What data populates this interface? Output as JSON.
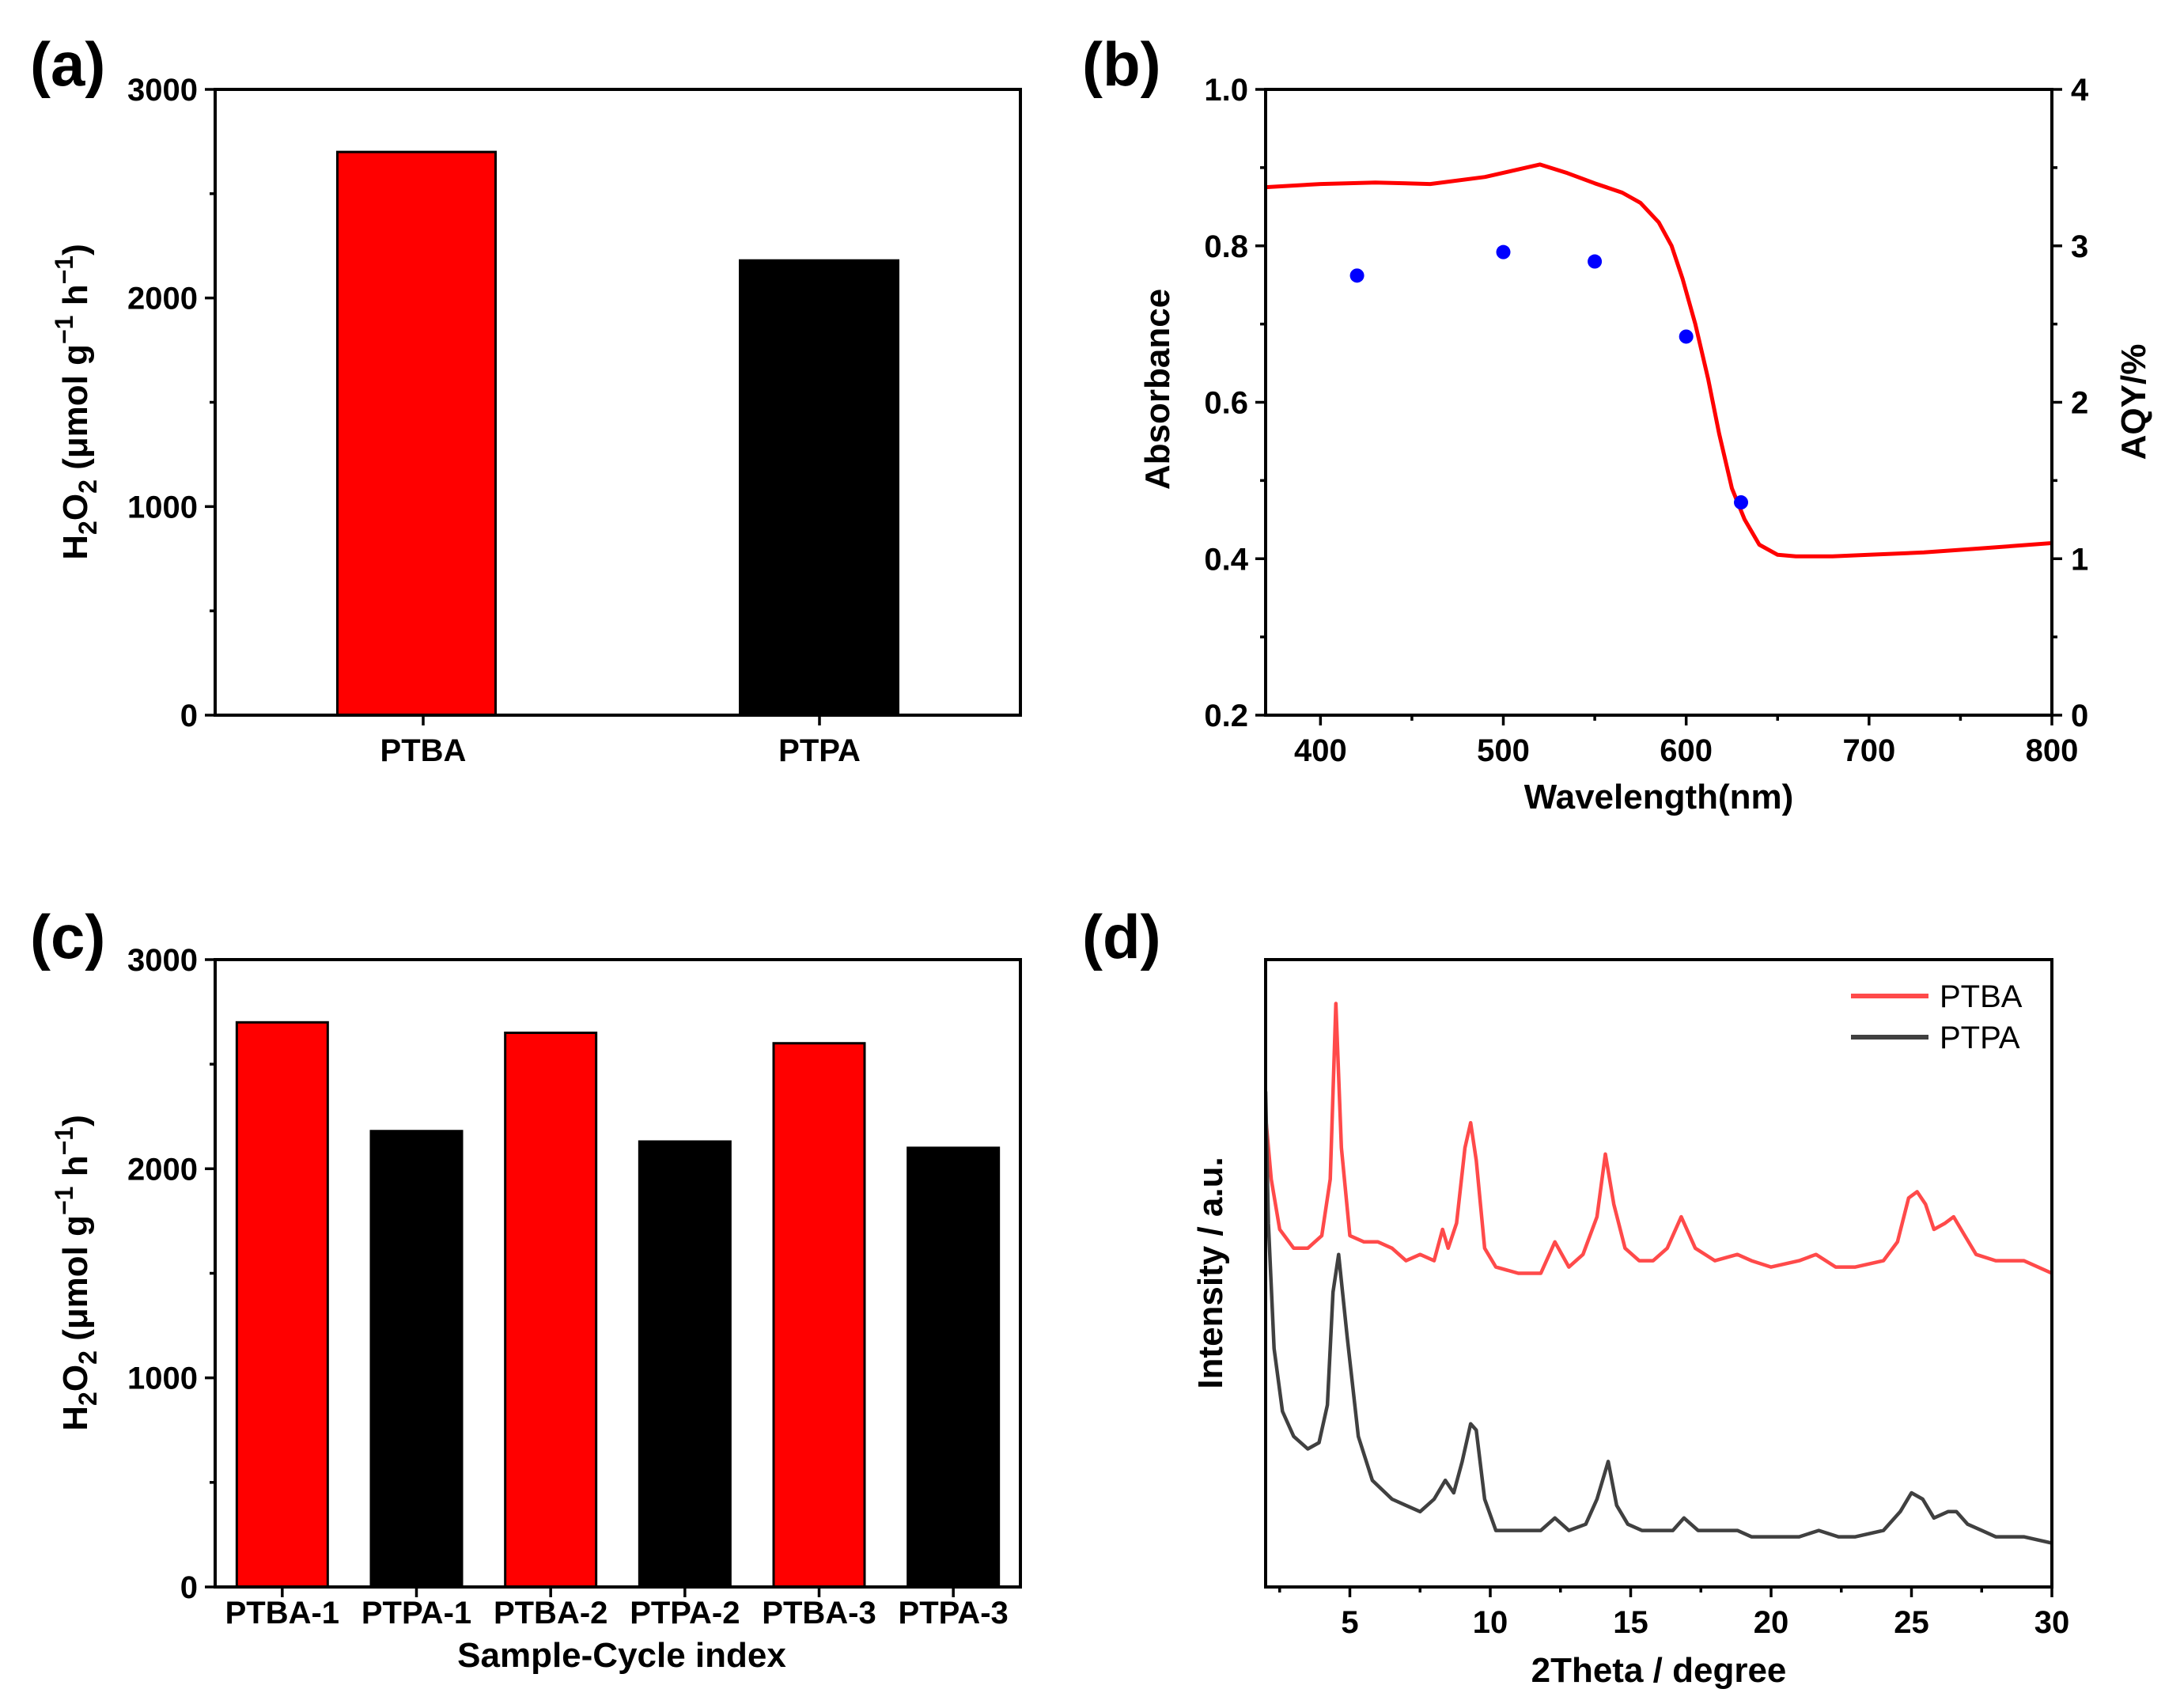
{
  "chart_data": [
    {
      "panel": "(a)",
      "type": "bar",
      "categories": [
        "PTBA",
        "PTPA"
      ],
      "values": [
        2700,
        2180
      ],
      "colors": [
        "#ff0000",
        "#000000"
      ],
      "ylabel": "H2O2 (μmol g−1 h−1)",
      "ylabel_parts": {
        "h": "H",
        "sub2a": "2",
        "o": "O",
        "sub2b": "2",
        "mid": " (μmol g",
        "sup1": "−1",
        "hh": " h",
        "sup2": "−1",
        "close": ")"
      },
      "xlabel": "",
      "ylim": [
        0,
        3000
      ],
      "yticks": [
        0,
        1000,
        2000,
        3000
      ]
    },
    {
      "panel": "(b)",
      "type": "line",
      "xlabel": "Wavelength(nm)",
      "ylabel": "Absorbance",
      "ylabel_right": "AQY/%",
      "xlim": [
        370,
        800
      ],
      "ylim": [
        0.2,
        1.0
      ],
      "ylim_right": [
        0,
        4
      ],
      "xticks": [
        400,
        500,
        600,
        700,
        800
      ],
      "yticks": [
        0.2,
        0.4,
        0.6,
        0.8,
        1.0
      ],
      "yticks_right": [
        0,
        1,
        2,
        3,
        4
      ],
      "series": [
        {
          "name": "Absorbance",
          "axis": "left",
          "color": "#ff0000",
          "x": [
            370,
            400,
            430,
            460,
            490,
            505,
            520,
            535,
            550,
            565,
            575,
            585,
            592,
            598,
            605,
            612,
            618,
            625,
            632,
            640,
            650,
            660,
            680,
            700,
            730,
            760,
            800
          ],
          "y": [
            0.875,
            0.879,
            0.881,
            0.879,
            0.888,
            0.896,
            0.904,
            0.893,
            0.88,
            0.868,
            0.855,
            0.83,
            0.8,
            0.758,
            0.7,
            0.63,
            0.56,
            0.49,
            0.45,
            0.418,
            0.405,
            0.403,
            0.403,
            0.405,
            0.408,
            0.413,
            0.42
          ]
        },
        {
          "name": "AQY",
          "axis": "right",
          "type": "scatter",
          "color": "#0000ff",
          "x": [
            420,
            500,
            550,
            600,
            630
          ],
          "y": [
            2.81,
            2.96,
            2.9,
            2.42,
            1.36
          ]
        }
      ]
    },
    {
      "panel": "(c)",
      "type": "bar",
      "categories": [
        "PTBA-1",
        "PTPA-1",
        "PTBA-2",
        "PTPA-2",
        "PTBA-3",
        "PTPA-3"
      ],
      "values": [
        2700,
        2180,
        2650,
        2130,
        2600,
        2100
      ],
      "colors": [
        "#ff0000",
        "#000000",
        "#ff0000",
        "#000000",
        "#ff0000",
        "#000000"
      ],
      "xlabel": "Sample-Cycle index",
      "ylabel": "H2O2 (μmol g−1 h−1)",
      "ylabel_parts": {
        "h": "H",
        "sub2a": "2",
        "o": "O",
        "sub2b": "2",
        "mid": " (μmol g",
        "sup1": "−1",
        "hh": " h",
        "sup2": "−1",
        "close": ")"
      },
      "ylim": [
        0,
        3000
      ],
      "yticks": [
        0,
        1000,
        2000,
        3000
      ]
    },
    {
      "panel": "(d)",
      "type": "line",
      "xlabel": "2Theta / degree",
      "ylabel": "Intensity / a.u.",
      "xlim": [
        2,
        30
      ],
      "ylim": [
        0,
        100
      ],
      "xticks": [
        5,
        10,
        15,
        20,
        25,
        30
      ],
      "legend_position": "top-right",
      "series": [
        {
          "name": "PTBA",
          "color": "#ff4a4a",
          "x": [
            2.0,
            2.2,
            2.5,
            3.0,
            3.5,
            4.0,
            4.3,
            4.5,
            4.7,
            5.0,
            5.5,
            6.0,
            6.5,
            7.0,
            7.5,
            8.0,
            8.3,
            8.5,
            8.8,
            9.1,
            9.3,
            9.5,
            9.8,
            10.2,
            11.0,
            11.8,
            12.3,
            12.8,
            13.3,
            13.8,
            14.1,
            14.4,
            14.8,
            15.3,
            15.8,
            16.3,
            16.8,
            17.3,
            18.0,
            18.8,
            19.3,
            20.0,
            21.0,
            21.6,
            22.3,
            23.0,
            24.0,
            24.5,
            24.9,
            25.2,
            25.5,
            25.8,
            26.2,
            26.5,
            26.9,
            27.3,
            28.0,
            29.0,
            30.0
          ],
          "y": [
            75,
            65,
            57,
            54,
            54,
            56,
            65,
            93,
            70,
            56,
            55,
            55,
            54,
            52,
            53,
            52,
            57,
            54,
            58,
            70,
            74,
            68,
            54,
            51,
            50,
            50,
            55,
            51,
            53,
            59,
            69,
            61,
            54,
            52,
            52,
            54,
            59,
            54,
            52,
            53,
            52,
            51,
            52,
            53,
            51,
            51,
            52,
            55,
            62,
            63,
            61,
            57,
            58,
            59,
            56,
            53,
            52,
            52,
            50
          ]
        },
        {
          "name": "PTPA",
          "color": "#404040",
          "x": [
            2.0,
            2.1,
            2.3,
            2.6,
            3.0,
            3.5,
            3.9,
            4.2,
            4.4,
            4.6,
            4.9,
            5.3,
            5.8,
            6.5,
            7.0,
            7.5,
            8.0,
            8.4,
            8.7,
            9.0,
            9.3,
            9.5,
            9.8,
            10.2,
            11.0,
            11.8,
            12.3,
            12.8,
            13.4,
            13.8,
            14.2,
            14.5,
            14.9,
            15.4,
            16.0,
            16.5,
            16.9,
            17.4,
            18.0,
            18.8,
            19.3,
            20.0,
            21.0,
            21.7,
            22.4,
            23.0,
            24.0,
            24.6,
            25.0,
            25.4,
            25.8,
            26.3,
            26.6,
            27.0,
            27.5,
            28.0,
            29.0,
            30.0
          ],
          "y": [
            79,
            58,
            38,
            28,
            24,
            22,
            23,
            29,
            47,
            53,
            40,
            24,
            17,
            14,
            13,
            12,
            14,
            17,
            15,
            20,
            26,
            25,
            14,
            9,
            9,
            9,
            11,
            9,
            10,
            14,
            20,
            13,
            10,
            9,
            9,
            9,
            11,
            9,
            9,
            9,
            8,
            8,
            8,
            9,
            8,
            8,
            9,
            12,
            15,
            14,
            11,
            12,
            12,
            10,
            9,
            8,
            8,
            7
          ]
        }
      ]
    }
  ]
}
